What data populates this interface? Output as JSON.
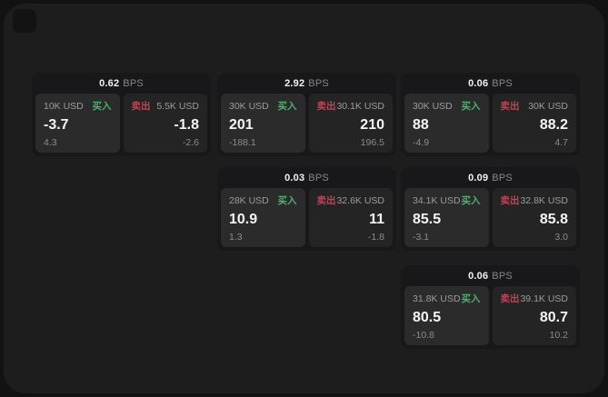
{
  "labels": {
    "bps_suffix": "BPS",
    "buy": "买入",
    "sell": "卖出"
  },
  "colors": {
    "buy_accent": "#4caf70",
    "sell_accent": "#b5485a",
    "surface": "#1d1d1e",
    "card": "#18181a",
    "pane_buy": "#2b2b2c",
    "pane_sell": "#242425"
  },
  "cards": [
    {
      "row": 0,
      "col": 0,
      "bps": "0.62",
      "buy": {
        "amount": "10K USD",
        "price": "-3.7",
        "delta": "4.3"
      },
      "sell": {
        "amount": "5.5K USD",
        "price": "-1.8",
        "delta": "-2.6"
      }
    },
    {
      "row": 0,
      "col": 1,
      "bps": "2.92",
      "buy": {
        "amount": "30K USD",
        "price": "201",
        "delta": "-188.1"
      },
      "sell": {
        "amount": "30.1K USD",
        "price": "210",
        "delta": "196.5"
      }
    },
    {
      "row": 0,
      "col": 2,
      "bps": "0.06",
      "buy": {
        "amount": "30K USD",
        "price": "88",
        "delta": "-4.9"
      },
      "sell": {
        "amount": "30K USD",
        "price": "88.2",
        "delta": "4.7"
      }
    },
    {
      "row": 1,
      "col": 1,
      "bps": "0.03",
      "buy": {
        "amount": "28K USD",
        "price": "10.9",
        "delta": "1.3"
      },
      "sell": {
        "amount": "32.6K USD",
        "price": "11",
        "delta": "-1.8"
      }
    },
    {
      "row": 1,
      "col": 2,
      "bps": "0.09",
      "buy": {
        "amount": "34.1K USD",
        "price": "85.5",
        "delta": "-3.1"
      },
      "sell": {
        "amount": "32.8K USD",
        "price": "85.8",
        "delta": "3.0"
      }
    },
    {
      "row": 2,
      "col": 2,
      "bps": "0.06",
      "buy": {
        "amount": "31.8K USD",
        "price": "80.5",
        "delta": "-10.8"
      },
      "sell": {
        "amount": "39.1K USD",
        "price": "80.7",
        "delta": "10.2"
      }
    }
  ]
}
